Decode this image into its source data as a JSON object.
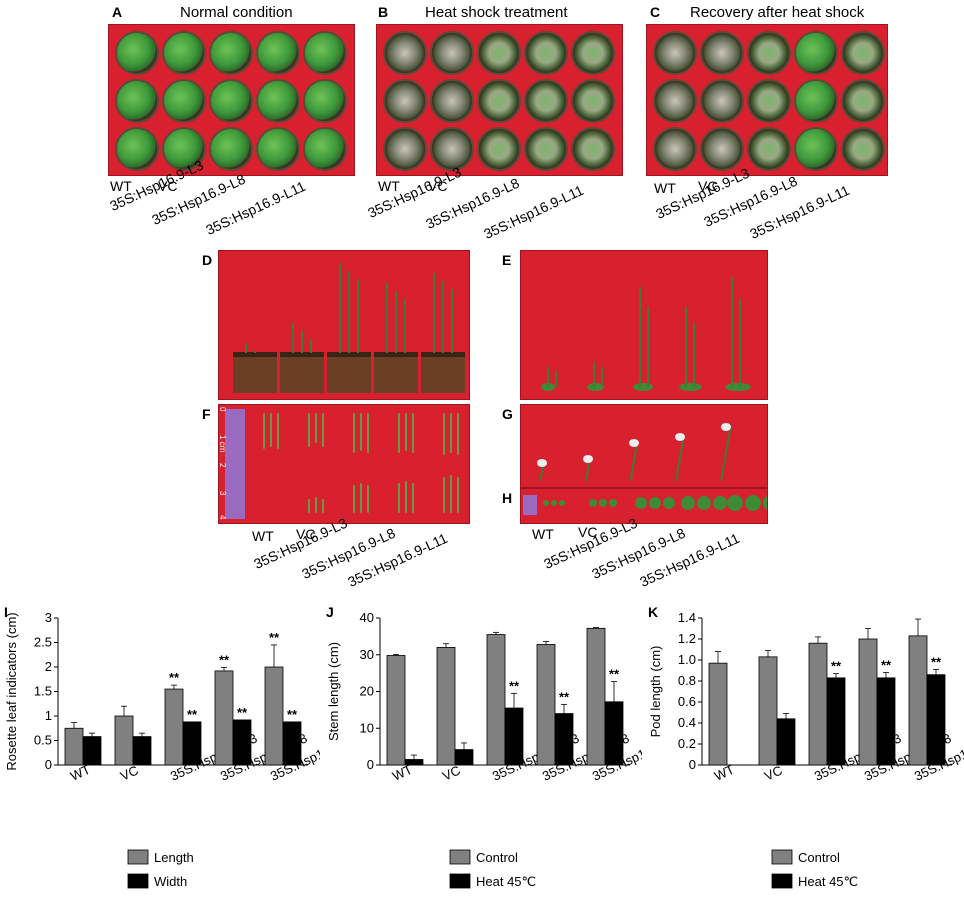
{
  "panels": {
    "A": {
      "letter": "A",
      "title": "Normal condition"
    },
    "B": {
      "letter": "B",
      "title": "Heat shock treatment"
    },
    "C": {
      "letter": "C",
      "title": "Recovery after heat shock"
    },
    "D": {
      "letter": "D"
    },
    "E": {
      "letter": "E"
    },
    "F": {
      "letter": "F"
    },
    "G": {
      "letter": "G"
    },
    "H": {
      "letter": "H"
    },
    "I": {
      "letter": "I"
    },
    "J": {
      "letter": "J"
    },
    "K": {
      "letter": "K"
    }
  },
  "genotypes": [
    "WT",
    "VC",
    "35S:Hsp16.9-L3",
    "35S:Hsp16.9-L8",
    "35S:Hsp16.9-L11"
  ],
  "ruler_ticks": [
    "0",
    "1 cm",
    "2",
    "3",
    "4"
  ],
  "colors": {
    "photo_bg": "#d8202f",
    "gray_bar": "#808080",
    "black_bar": "#000000"
  },
  "chart_data": [
    {
      "id": "I",
      "type": "bar",
      "ylabel": "Rosette leaf indicators (cm)",
      "ylim": [
        0,
        3
      ],
      "yticks": [
        "0",
        "0.5",
        "1",
        "1.5",
        "2",
        "2.5",
        "3"
      ],
      "categories": [
        "WT",
        "VC",
        "35S:Hsp16.9-L3",
        "35S:Hsp16.9-L8",
        "35S:Hsp16.9-L11"
      ],
      "series": [
        {
          "name": "Length",
          "values": [
            0.75,
            1.0,
            1.55,
            1.92,
            2.0
          ],
          "errors": [
            0.12,
            0.2,
            0.08,
            0.07,
            0.45
          ],
          "sig": [
            "",
            "",
            "**",
            "**",
            "**"
          ]
        },
        {
          "name": "Width",
          "values": [
            0.58,
            0.58,
            0.88,
            0.92,
            0.88
          ],
          "errors": [
            0.07,
            0.07,
            0.0,
            0.0,
            0.0
          ],
          "sig": [
            "",
            "",
            "**",
            "**",
            "**"
          ]
        }
      ]
    },
    {
      "id": "J",
      "type": "bar",
      "ylabel": "Stem length (cm)",
      "ylim": [
        0,
        40
      ],
      "yticks": [
        "0",
        "10",
        "20",
        "30",
        "40"
      ],
      "categories": [
        "WT",
        "VC",
        "35S:Hsp16.9-L3",
        "35S:Hsp16.9-L8",
        "35S:Hsp16.9-L11"
      ],
      "series": [
        {
          "name": "Control",
          "values": [
            29.8,
            32.0,
            35.5,
            32.8,
            37.2
          ],
          "errors": [
            0.3,
            1.0,
            0.6,
            0.8,
            0.2
          ],
          "sig": [
            "",
            "",
            "",
            "",
            ""
          ]
        },
        {
          "name": "Heat 45℃",
          "values": [
            1.5,
            4.2,
            15.5,
            14.0,
            17.2
          ],
          "errors": [
            1.2,
            1.8,
            4.0,
            2.5,
            5.5
          ],
          "sig": [
            "",
            "",
            "**",
            "**",
            "**"
          ]
        }
      ]
    },
    {
      "id": "K",
      "type": "bar",
      "ylabel": "Pod length (cm)",
      "ylim": [
        0,
        1.4
      ],
      "yticks": [
        "0",
        "0.2",
        "0.4",
        "0.6",
        "0.8",
        "1.0",
        "1.2",
        "1.4"
      ],
      "categories": [
        "WT",
        "VC",
        "35S:Hsp16.9-L3",
        "35S:Hsp16.9-L8",
        "35S:Hsp16.9-L11"
      ],
      "series": [
        {
          "name": "Control",
          "values": [
            0.97,
            1.03,
            1.16,
            1.2,
            1.23
          ],
          "errors": [
            0.11,
            0.06,
            0.06,
            0.1,
            0.16
          ],
          "sig": [
            "",
            "",
            "",
            "",
            ""
          ]
        },
        {
          "name": "Heat 45℃",
          "values": [
            0.0,
            0.44,
            0.83,
            0.83,
            0.86
          ],
          "errors": [
            0.0,
            0.05,
            0.04,
            0.05,
            0.05
          ],
          "sig": [
            "",
            "",
            "**",
            "**",
            "**"
          ]
        }
      ]
    }
  ]
}
